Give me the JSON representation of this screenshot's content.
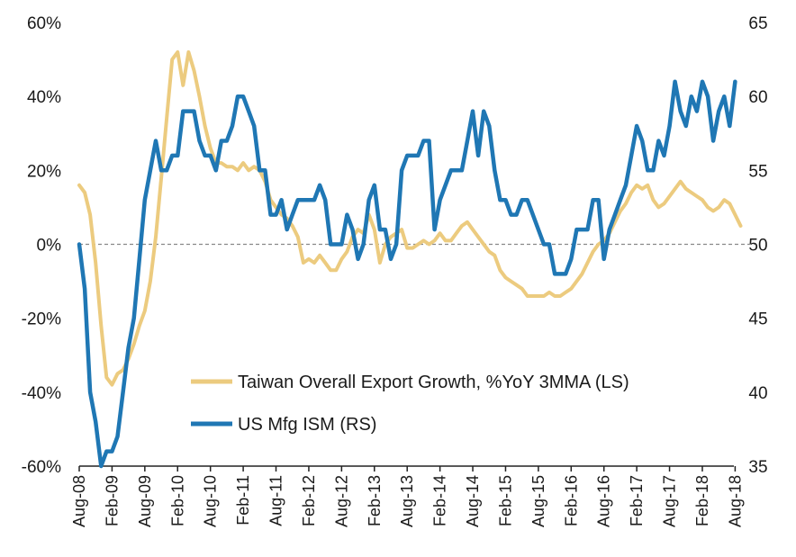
{
  "chart_data": {
    "type": "line",
    "title": "",
    "x_ticks": [
      "Aug-08",
      "Feb-09",
      "Aug-09",
      "Feb-10",
      "Aug-10",
      "Feb-11",
      "Aug-11",
      "Feb-12",
      "Aug-12",
      "Feb-13",
      "Aug-13",
      "Feb-14",
      "Aug-14",
      "Feb-15",
      "Aug-15",
      "Feb-16",
      "Aug-16",
      "Feb-17",
      "Aug-17",
      "Feb-18",
      "Aug-18"
    ],
    "y_left": {
      "ticks": [
        "60%",
        "40%",
        "20%",
        "0%",
        "-20%",
        "-40%",
        "-60%"
      ],
      "range": [
        -60,
        60
      ]
    },
    "y_right": {
      "ticks": [
        "65",
        "60",
        "55",
        "50",
        "45",
        "40",
        "35"
      ],
      "range": [
        35,
        65
      ]
    },
    "reference_line": {
      "axis": "left",
      "value": 0
    },
    "legend_position": "lower-right-inside",
    "series": [
      {
        "name": "Taiwan Overall Export Growth, %YoY 3MMA (LS)",
        "axis": "left",
        "color": "#ECCB7F",
        "points": [
          [
            "Aug-08",
            16
          ],
          [
            "Sep-08",
            14
          ],
          [
            "Oct-08",
            8
          ],
          [
            "Nov-08",
            -5
          ],
          [
            "Dec-08",
            -22
          ],
          [
            "Jan-09",
            -36
          ],
          [
            "Feb-09",
            -38
          ],
          [
            "Mar-09",
            -35
          ],
          [
            "Apr-09",
            -34
          ],
          [
            "May-09",
            -31
          ],
          [
            "Jun-09",
            -27
          ],
          [
            "Jul-09",
            -22
          ],
          [
            "Aug-09",
            -18
          ],
          [
            "Sep-09",
            -10
          ],
          [
            "Oct-09",
            2
          ],
          [
            "Nov-09",
            18
          ],
          [
            "Dec-09",
            34
          ],
          [
            "Jan-10",
            50
          ],
          [
            "Feb-10",
            52
          ],
          [
            "Mar-10",
            43
          ],
          [
            "Apr-10",
            52
          ],
          [
            "May-10",
            47
          ],
          [
            "Jun-10",
            40
          ],
          [
            "Jul-10",
            32
          ],
          [
            "Aug-10",
            26
          ],
          [
            "Sep-10",
            22
          ],
          [
            "Oct-10",
            22
          ],
          [
            "Nov-10",
            21
          ],
          [
            "Dec-10",
            21
          ],
          [
            "Jan-11",
            20
          ],
          [
            "Feb-11",
            22
          ],
          [
            "Mar-11",
            20
          ],
          [
            "Apr-11",
            21
          ],
          [
            "May-11",
            20
          ],
          [
            "Jun-11",
            17
          ],
          [
            "Jul-11",
            12
          ],
          [
            "Aug-11",
            10
          ],
          [
            "Sep-11",
            8
          ],
          [
            "Oct-11",
            7
          ],
          [
            "Nov-11",
            5
          ],
          [
            "Dec-11",
            2
          ],
          [
            "Jan-12",
            -5
          ],
          [
            "Feb-12",
            -4
          ],
          [
            "Mar-12",
            -5
          ],
          [
            "Apr-12",
            -3
          ],
          [
            "May-12",
            -5
          ],
          [
            "Jun-12",
            -7
          ],
          [
            "Jul-12",
            -7
          ],
          [
            "Aug-12",
            -4
          ],
          [
            "Sep-12",
            -2
          ],
          [
            "Oct-12",
            2
          ],
          [
            "Nov-12",
            4
          ],
          [
            "Dec-12",
            3
          ],
          [
            "Jan-13",
            8
          ],
          [
            "Feb-13",
            4
          ],
          [
            "Mar-13",
            -5
          ],
          [
            "Apr-13",
            0
          ],
          [
            "May-13",
            2
          ],
          [
            "Jun-13",
            3
          ],
          [
            "Jul-13",
            4
          ],
          [
            "Aug-13",
            -1
          ],
          [
            "Sep-13",
            -1
          ],
          [
            "Oct-13",
            0
          ],
          [
            "Nov-13",
            1
          ],
          [
            "Dec-13",
            0
          ],
          [
            "Jan-14",
            1
          ],
          [
            "Feb-14",
            3
          ],
          [
            "Mar-14",
            1
          ],
          [
            "Apr-14",
            1
          ],
          [
            "May-14",
            3
          ],
          [
            "Jun-14",
            5
          ],
          [
            "Jul-14",
            6
          ],
          [
            "Aug-14",
            4
          ],
          [
            "Sep-14",
            2
          ],
          [
            "Oct-14",
            0
          ],
          [
            "Nov-14",
            -2
          ],
          [
            "Dec-14",
            -3
          ],
          [
            "Jan-15",
            -7
          ],
          [
            "Feb-15",
            -9
          ],
          [
            "Mar-15",
            -10
          ],
          [
            "Apr-15",
            -11
          ],
          [
            "May-15",
            -12
          ],
          [
            "Jun-15",
            -14
          ],
          [
            "Jul-15",
            -14
          ],
          [
            "Aug-15",
            -14
          ],
          [
            "Sep-15",
            -14
          ],
          [
            "Oct-15",
            -13
          ],
          [
            "Nov-15",
            -14
          ],
          [
            "Dec-15",
            -14
          ],
          [
            "Jan-16",
            -13
          ],
          [
            "Feb-16",
            -12
          ],
          [
            "Mar-16",
            -10
          ],
          [
            "Apr-16",
            -8
          ],
          [
            "May-16",
            -5
          ],
          [
            "Jun-16",
            -2
          ],
          [
            "Jul-16",
            0
          ],
          [
            "Aug-16",
            1
          ],
          [
            "Sep-16",
            3
          ],
          [
            "Oct-16",
            6
          ],
          [
            "Nov-16",
            9
          ],
          [
            "Dec-16",
            11
          ],
          [
            "Jan-17",
            14
          ],
          [
            "Feb-17",
            16
          ],
          [
            "Mar-17",
            15
          ],
          [
            "Apr-17",
            16
          ],
          [
            "May-17",
            12
          ],
          [
            "Jun-17",
            10
          ],
          [
            "Jul-17",
            11
          ],
          [
            "Aug-17",
            13
          ],
          [
            "Sep-17",
            15
          ],
          [
            "Oct-17",
            17
          ],
          [
            "Nov-17",
            15
          ],
          [
            "Dec-17",
            14
          ],
          [
            "Jan-18",
            13
          ],
          [
            "Feb-18",
            12
          ],
          [
            "Mar-18",
            10
          ],
          [
            "Apr-18",
            9
          ],
          [
            "May-18",
            10
          ],
          [
            "Jun-18",
            12
          ],
          [
            "Jul-18",
            11
          ],
          [
            "Aug-18",
            8
          ],
          [
            "Sep-18",
            5
          ]
        ]
      },
      {
        "name": "US Mfg ISM (RS)",
        "axis": "right",
        "color": "#1F77B4",
        "points": [
          [
            "Aug-08",
            50
          ],
          [
            "Sep-08",
            47
          ],
          [
            "Oct-08",
            40
          ],
          [
            "Nov-08",
            38
          ],
          [
            "Dec-08",
            35
          ],
          [
            "Jan-09",
            36
          ],
          [
            "Feb-09",
            36
          ],
          [
            "Mar-09",
            37
          ],
          [
            "Apr-09",
            40
          ],
          [
            "May-09",
            43
          ],
          [
            "Jun-09",
            45
          ],
          [
            "Jul-09",
            49
          ],
          [
            "Aug-09",
            53
          ],
          [
            "Sep-09",
            55
          ],
          [
            "Oct-09",
            57
          ],
          [
            "Nov-09",
            55
          ],
          [
            "Dec-09",
            55
          ],
          [
            "Jan-10",
            56
          ],
          [
            "Feb-10",
            56
          ],
          [
            "Mar-10",
            59
          ],
          [
            "Apr-10",
            59
          ],
          [
            "May-10",
            59
          ],
          [
            "Jun-10",
            57
          ],
          [
            "Jul-10",
            56
          ],
          [
            "Aug-10",
            56
          ],
          [
            "Sep-10",
            55
          ],
          [
            "Oct-10",
            57
          ],
          [
            "Nov-10",
            57
          ],
          [
            "Dec-10",
            58
          ],
          [
            "Jan-11",
            60
          ],
          [
            "Feb-11",
            60
          ],
          [
            "Mar-11",
            59
          ],
          [
            "Apr-11",
            58
          ],
          [
            "May-11",
            55
          ],
          [
            "Jun-11",
            55
          ],
          [
            "Jul-11",
            52
          ],
          [
            "Aug-11",
            52
          ],
          [
            "Sep-11",
            53
          ],
          [
            "Oct-11",
            51
          ],
          [
            "Nov-11",
            52
          ],
          [
            "Dec-11",
            53
          ],
          [
            "Jan-12",
            53
          ],
          [
            "Feb-12",
            53
          ],
          [
            "Mar-12",
            53
          ],
          [
            "Apr-12",
            54
          ],
          [
            "May-12",
            53
          ],
          [
            "Jun-12",
            50
          ],
          [
            "Jul-12",
            50
          ],
          [
            "Aug-12",
            50
          ],
          [
            "Sep-12",
            52
          ],
          [
            "Oct-12",
            51
          ],
          [
            "Nov-12",
            49
          ],
          [
            "Dec-12",
            50
          ],
          [
            "Jan-13",
            53
          ],
          [
            "Feb-13",
            54
          ],
          [
            "Mar-13",
            51
          ],
          [
            "Apr-13",
            51
          ],
          [
            "May-13",
            49
          ],
          [
            "Jun-13",
            50
          ],
          [
            "Jul-13",
            55
          ],
          [
            "Aug-13",
            56
          ],
          [
            "Sep-13",
            56
          ],
          [
            "Oct-13",
            56
          ],
          [
            "Nov-13",
            57
          ],
          [
            "Dec-13",
            57
          ],
          [
            "Jan-14",
            51
          ],
          [
            "Feb-14",
            53
          ],
          [
            "Mar-14",
            54
          ],
          [
            "Apr-14",
            55
          ],
          [
            "May-14",
            55
          ],
          [
            "Jun-14",
            55
          ],
          [
            "Jul-14",
            57
          ],
          [
            "Aug-14",
            59
          ],
          [
            "Sep-14",
            56
          ],
          [
            "Oct-14",
            59
          ],
          [
            "Nov-14",
            58
          ],
          [
            "Dec-14",
            55
          ],
          [
            "Jan-15",
            53
          ],
          [
            "Feb-15",
            53
          ],
          [
            "Mar-15",
            52
          ],
          [
            "Apr-15",
            52
          ],
          [
            "May-15",
            53
          ],
          [
            "Jun-15",
            53
          ],
          [
            "Jul-15",
            52
          ],
          [
            "Aug-15",
            51
          ],
          [
            "Sep-15",
            50
          ],
          [
            "Oct-15",
            50
          ],
          [
            "Nov-15",
            48
          ],
          [
            "Dec-15",
            48
          ],
          [
            "Jan-16",
            48
          ],
          [
            "Feb-16",
            49
          ],
          [
            "Mar-16",
            51
          ],
          [
            "Apr-16",
            51
          ],
          [
            "May-16",
            51
          ],
          [
            "Jun-16",
            53
          ],
          [
            "Jul-16",
            53
          ],
          [
            "Aug-16",
            49
          ],
          [
            "Sep-16",
            51
          ],
          [
            "Oct-16",
            52
          ],
          [
            "Nov-16",
            53
          ],
          [
            "Dec-16",
            54
          ],
          [
            "Jan-17",
            56
          ],
          [
            "Feb-17",
            58
          ],
          [
            "Mar-17",
            57
          ],
          [
            "Apr-17",
            55
          ],
          [
            "May-17",
            55
          ],
          [
            "Jun-17",
            57
          ],
          [
            "Jul-17",
            56
          ],
          [
            "Aug-17",
            58
          ],
          [
            "Sep-17",
            61
          ],
          [
            "Oct-17",
            59
          ],
          [
            "Nov-17",
            58
          ],
          [
            "Dec-17",
            60
          ],
          [
            "Jan-18",
            59
          ],
          [
            "Feb-18",
            61
          ],
          [
            "Mar-18",
            60
          ],
          [
            "Apr-18",
            57
          ],
          [
            "May-18",
            59
          ],
          [
            "Jun-18",
            60
          ],
          [
            "Jul-18",
            58
          ],
          [
            "Aug-18",
            61
          ]
        ]
      }
    ]
  }
}
